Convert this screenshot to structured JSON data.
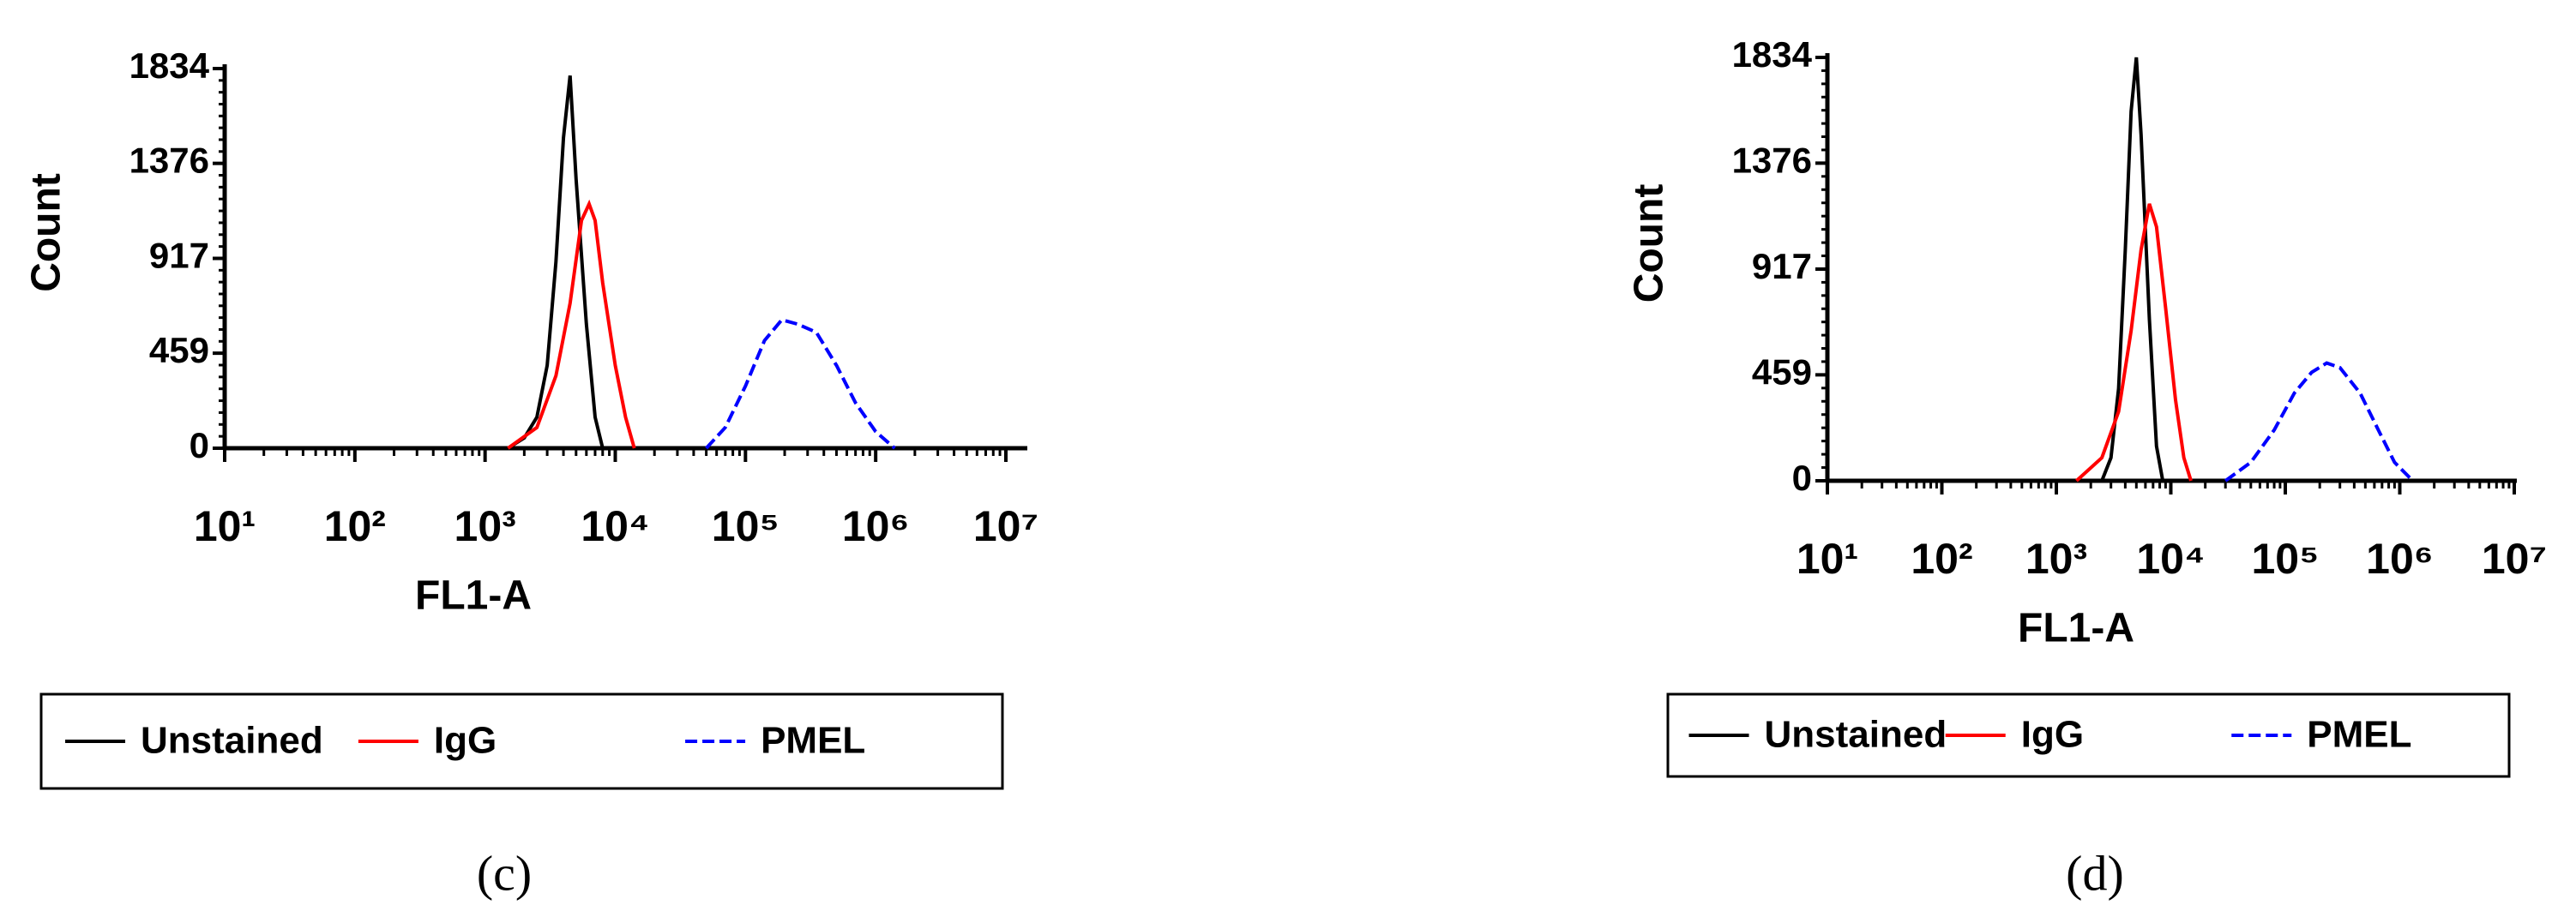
{
  "chart_data": [
    {
      "type": "line",
      "caption": "(c)",
      "xlabel": "FL1-A",
      "ylabel": "Count",
      "xscale": "log",
      "xlim": [
        10,
        10000000
      ],
      "ylim": [
        0,
        1834
      ],
      "xticks": [
        {
          "value": 10,
          "label": "10¹"
        },
        {
          "value": 100,
          "label": "10²"
        },
        {
          "value": 1000,
          "label": "10³"
        },
        {
          "value": 10000,
          "label": "10⁴"
        },
        {
          "value": 100000,
          "label": "10⁵"
        },
        {
          "value": 1000000,
          "label": "10⁶"
        },
        {
          "value": 10000000,
          "label": "10⁷"
        }
      ],
      "yticks": [
        0,
        459,
        917,
        1376,
        1834
      ],
      "series": [
        {
          "name": "Unstained",
          "color": "#000000",
          "dashed": false,
          "x": [
            1500,
            2000,
            2500,
            3000,
            3500,
            4000,
            4500,
            5000,
            6000,
            7000,
            8000
          ],
          "values": [
            0,
            50,
            150,
            400,
            900,
            1500,
            1800,
            1300,
            600,
            150,
            0
          ]
        },
        {
          "name": "IgG",
          "color": "#ff0000",
          "dashed": false,
          "x": [
            1500,
            2500,
            3500,
            4500,
            5500,
            6300,
            7000,
            8000,
            10000,
            12000,
            14000
          ],
          "values": [
            0,
            100,
            350,
            700,
            1100,
            1180,
            1100,
            800,
            400,
            150,
            0
          ]
        },
        {
          "name": "PMEL",
          "color": "#0000ff",
          "dashed": true,
          "x": [
            50000,
            70000,
            100000,
            140000,
            190000,
            250000,
            350000,
            500000,
            700000,
            1000000,
            1400000
          ],
          "values": [
            0,
            100,
            300,
            520,
            620,
            600,
            560,
            400,
            220,
            80,
            0
          ]
        }
      ]
    },
    {
      "type": "line",
      "caption": "(d)",
      "xlabel": "FL1-A",
      "ylabel": "Count",
      "xscale": "log",
      "xlim": [
        10,
        10000000
      ],
      "ylim": [
        0,
        1834
      ],
      "xticks": [
        {
          "value": 10,
          "label": "10¹"
        },
        {
          "value": 100,
          "label": "10²"
        },
        {
          "value": 1000,
          "label": "10³"
        },
        {
          "value": 10000,
          "label": "10⁴"
        },
        {
          "value": 100000,
          "label": "10⁵"
        },
        {
          "value": 1000000,
          "label": "10⁶"
        },
        {
          "value": 10000000,
          "label": "10⁷"
        }
      ],
      "yticks": [
        0,
        459,
        917,
        1376,
        1834
      ],
      "series": [
        {
          "name": "Unstained",
          "color": "#000000",
          "dashed": false,
          "x": [
            2500,
            3000,
            3500,
            4000,
            4500,
            5000,
            5500,
            6500,
            7500,
            8500
          ],
          "values": [
            0,
            100,
            400,
            1000,
            1600,
            1834,
            1500,
            700,
            150,
            0
          ]
        },
        {
          "name": "IgG",
          "color": "#ff0000",
          "dashed": false,
          "x": [
            1500,
            2500,
            3500,
            4500,
            5500,
            6500,
            7500,
            9000,
            11000,
            13000,
            15000
          ],
          "values": [
            0,
            100,
            300,
            650,
            1000,
            1200,
            1100,
            750,
            350,
            100,
            0
          ]
        },
        {
          "name": "PMEL",
          "color": "#0000ff",
          "dashed": true,
          "x": [
            30000,
            50000,
            80000,
            120000,
            170000,
            230000,
            300000,
            450000,
            650000,
            900000,
            1300000
          ],
          "values": [
            0,
            80,
            220,
            380,
            470,
            510,
            490,
            380,
            220,
            80,
            0
          ]
        }
      ]
    }
  ]
}
